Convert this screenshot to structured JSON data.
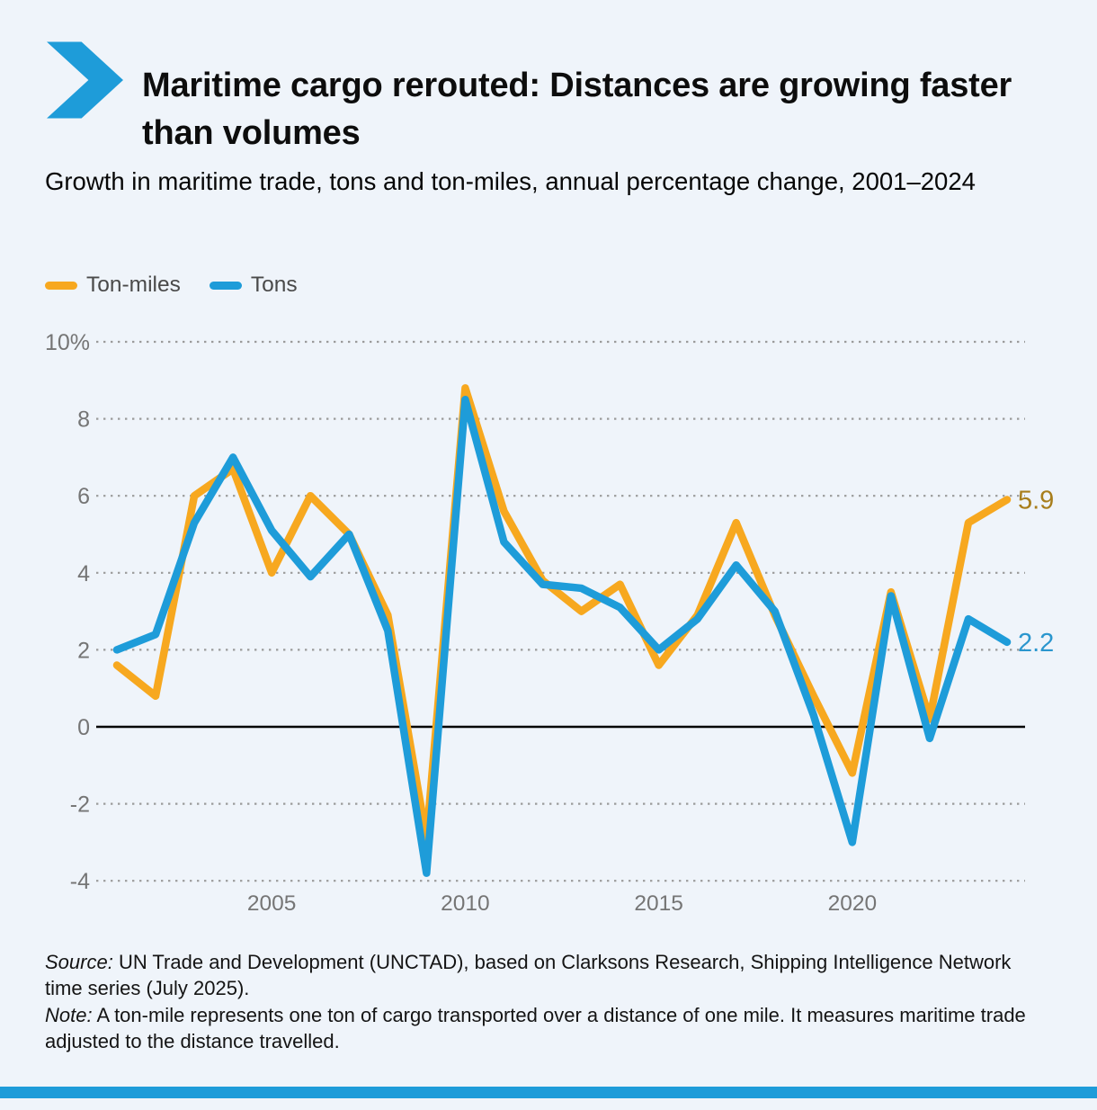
{
  "header": {
    "title": "Maritime cargo rerouted: Distances are growing faster than volumes"
  },
  "subtitle": "Growth in maritime trade, tons and ton-miles, annual percentage change, 2001–2024",
  "legend": [
    {
      "label": "Ton-miles",
      "color": "#F7A81F"
    },
    {
      "label": "Tons",
      "color": "#1E9CD9"
    }
  ],
  "chart_data": {
    "type": "line",
    "title": "Growth in maritime trade, tons and ton-miles, annual percentage change, 2001–2024",
    "x": [
      2001,
      2002,
      2003,
      2004,
      2005,
      2006,
      2007,
      2008,
      2009,
      2010,
      2011,
      2012,
      2013,
      2014,
      2015,
      2016,
      2017,
      2018,
      2019,
      2020,
      2021,
      2022,
      2023,
      2024
    ],
    "series": [
      {
        "name": "Ton-miles",
        "color": "#F7A81F",
        "values": [
          1.6,
          0.8,
          6.0,
          6.7,
          4.0,
          6.0,
          5.0,
          2.9,
          -2.9,
          8.8,
          5.6,
          3.8,
          3.0,
          3.7,
          1.6,
          2.9,
          5.3,
          2.9,
          0.8,
          -1.2,
          3.5,
          0.2,
          5.3,
          5.9
        ],
        "end_label": "5.9",
        "end_label_color": "#A87E1C"
      },
      {
        "name": "Tons",
        "color": "#1E9CD9",
        "values": [
          2.0,
          2.4,
          5.3,
          7.0,
          5.1,
          3.9,
          5.0,
          2.5,
          -3.8,
          8.5,
          4.8,
          3.7,
          3.6,
          3.1,
          2.0,
          2.8,
          4.2,
          3.0,
          0.3,
          -3.0,
          3.4,
          -0.3,
          2.8,
          2.2
        ],
        "end_label": "2.2",
        "end_label_color": "#2A96CE"
      }
    ],
    "ylim": [
      -4,
      10
    ],
    "yticks": [
      {
        "v": 10,
        "label": "10%"
      },
      {
        "v": 8,
        "label": "8"
      },
      {
        "v": 6,
        "label": "6"
      },
      {
        "v": 4,
        "label": "4"
      },
      {
        "v": 2,
        "label": "2"
      },
      {
        "v": 0,
        "label": "0"
      },
      {
        "v": -2,
        "label": "-2"
      },
      {
        "v": -4,
        "label": "-4"
      }
    ],
    "xticks": [
      {
        "year": 2005,
        "label": "2005"
      },
      {
        "year": 2010,
        "label": "2010"
      },
      {
        "year": 2015,
        "label": "2015"
      },
      {
        "year": 2020,
        "label": "2020"
      }
    ],
    "grid": "horizontal-dotted",
    "zero_line": true,
    "legend_position": "top-left"
  },
  "footer": {
    "source_label": "Source:",
    "source_text": " UN Trade and Development (UNCTAD), based on Clarksons Research, Shipping Intelligence Network time series (July 2025).",
    "note_label": "Note:",
    "note_text": " A ton-mile represents one ton of cargo transported over a distance of one mile. It measures maritime trade adjusted to the distance travelled."
  },
  "colors": {
    "background": "#EFF4FA",
    "accent_blue": "#1E9CD9",
    "accent_orange": "#F7A81F",
    "axis_text": "#757575",
    "grid_dots": "#9b9b9b",
    "zero_line": "#000000",
    "bottom_bar": "#1E9CD9"
  }
}
